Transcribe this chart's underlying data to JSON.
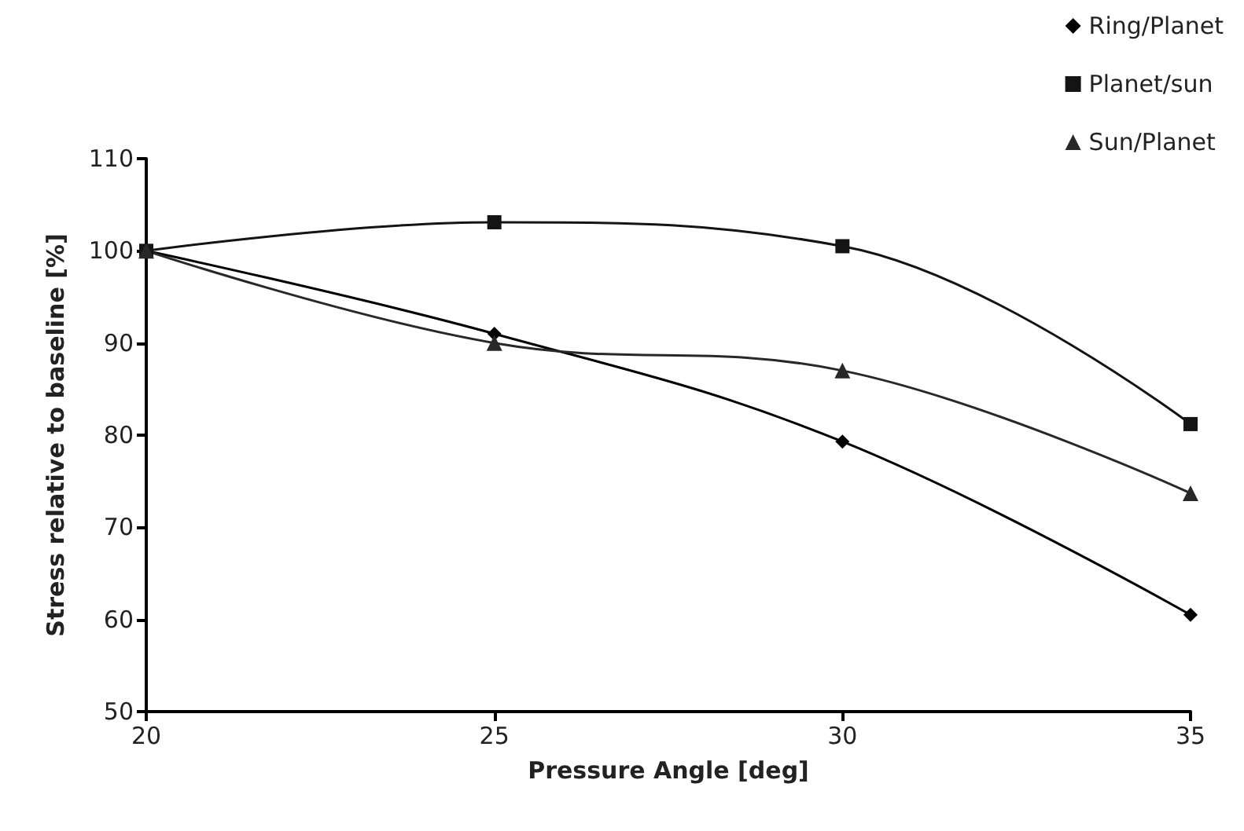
{
  "chart_data": {
    "type": "line",
    "xlabel": "Pressure Angle [deg]",
    "ylabel": "Stress relative to baseline [%]",
    "x": [
      20,
      25,
      30,
      35
    ],
    "xlim": [
      20,
      35
    ],
    "xticks": [
      20,
      25,
      30,
      35
    ],
    "ylim": [
      50,
      110
    ],
    "yticks": [
      50,
      60,
      70,
      80,
      90,
      100,
      110
    ],
    "grid": false,
    "legend": "top right",
    "series": [
      {
        "name": "Ring/Planet",
        "color": "#000000",
        "marker": "diamond",
        "values": [
          100,
          91,
          79.3,
          60.5
        ]
      },
      {
        "name": "Planet/sun",
        "color": "#141414",
        "marker": "square",
        "values": [
          100,
          103.1,
          100.5,
          81.2
        ]
      },
      {
        "name": "Sun/Planet",
        "color": "#282828",
        "marker": "triangle",
        "values": [
          100,
          90,
          87,
          73.7
        ]
      }
    ]
  }
}
